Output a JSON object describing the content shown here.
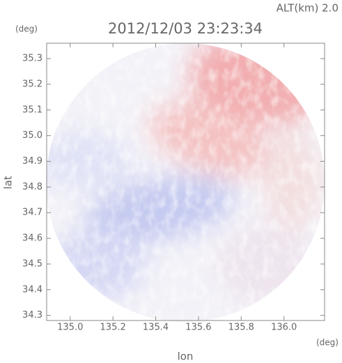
{
  "chart_data": {
    "type": "image",
    "title": "2012/12/03 23:23:34",
    "subtitle": "ALT(km)  2.0",
    "x_label": "lon",
    "y_label": "lat",
    "x_unit": "(deg)",
    "y_unit": "(deg)",
    "xlim": [
      134.89,
      136.19
    ],
    "ylim": [
      34.28,
      35.36
    ],
    "xticks": [
      {
        "value": 135,
        "label": "135.0"
      },
      135.2,
      135.4,
      135.6,
      135.8,
      {
        "value": 136,
        "label": "136.0"
      }
    ],
    "yticks": [
      34.3,
      34.4,
      34.5,
      34.6,
      34.7,
      34.8,
      34.9,
      {
        "value": 35,
        "label": "35.0"
      },
      35.1,
      35.2,
      35.3
    ]
  }
}
